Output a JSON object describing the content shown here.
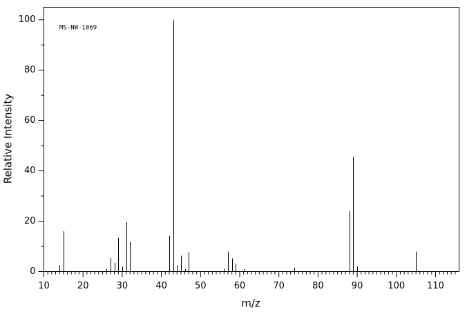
{
  "chart_data": {
    "type": "stem",
    "annotation": "MS-NW-1069",
    "x_label": "m/z",
    "y_label": "Relative Intensity",
    "x": [
      14,
      15,
      26,
      27,
      28,
      29,
      30,
      31,
      32,
      42,
      43,
      44,
      45,
      46,
      47,
      56,
      57,
      58,
      59,
      61,
      74,
      88,
      89,
      90,
      105
    ],
    "values": [
      2.5,
      16,
      1,
      5.5,
      3.5,
      13.4,
      2,
      19.7,
      11.8,
      14.2,
      100,
      2.5,
      6.3,
      1,
      7.7,
      1,
      7.9,
      5.2,
      3.3,
      1,
      1.5,
      24.1,
      45.5,
      2,
      7.9
    ],
    "color": "#000000",
    "xlim": [
      10,
      116
    ],
    "ylim": [
      0,
      105
    ],
    "xticks": [
      10,
      20,
      30,
      40,
      50,
      60,
      70,
      80,
      90,
      100,
      110
    ],
    "yticks": [
      0,
      20,
      40,
      60,
      80,
      100
    ],
    "xminorticks": [
      11,
      12,
      13,
      14,
      15,
      16,
      17,
      18,
      19,
      21,
      22,
      23,
      24,
      25,
      26,
      27,
      28,
      29,
      31,
      32,
      33,
      34,
      35,
      36,
      37,
      38,
      39,
      41,
      42,
      43,
      44,
      45,
      46,
      47,
      48,
      49,
      51,
      52,
      53,
      54,
      55,
      56,
      57,
      58,
      59,
      61,
      62,
      63,
      64,
      65,
      66,
      67,
      68,
      69,
      71,
      72,
      73,
      74,
      75,
      76,
      77,
      78,
      79,
      81,
      82,
      83,
      84,
      85,
      86,
      87,
      88,
      89,
      91,
      92,
      93,
      94,
      95,
      96,
      97,
      98,
      99,
      101,
      102,
      103,
      104,
      105,
      106,
      107,
      108,
      109,
      111,
      112,
      113,
      114,
      115
    ],
    "yminorticks": [
      10,
      30,
      50,
      70,
      90
    ]
  }
}
